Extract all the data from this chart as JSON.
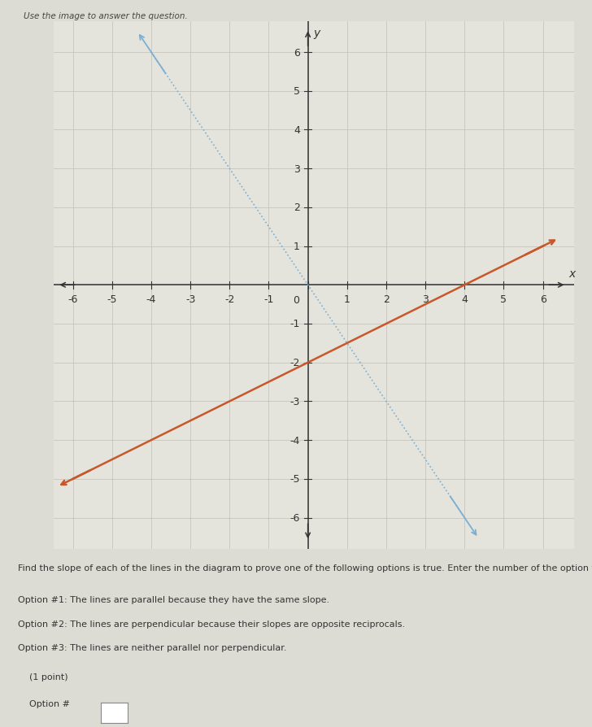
{
  "title": "Use the image to answer the question.",
  "xlabel": "x",
  "ylabel": "y",
  "xlim": [
    -6.5,
    6.8
  ],
  "ylim": [
    -6.8,
    6.8
  ],
  "xticks": [
    -6,
    -5,
    -4,
    -3,
    -2,
    -1,
    0,
    1,
    2,
    3,
    4,
    5,
    6
  ],
  "yticks": [
    -6,
    -5,
    -4,
    -3,
    -2,
    -1,
    1,
    2,
    3,
    4,
    5,
    6
  ],
  "blue_line": {
    "x1": -4,
    "y1": 6,
    "x2": 4,
    "y2": -6,
    "color": "#7BAFD4",
    "linewidth": 1.2,
    "linestyle": "dotted"
  },
  "orange_line": {
    "x1": -6,
    "y1": -5,
    "x2": 6,
    "y2": 1,
    "color": "#C8572A",
    "linewidth": 1.8,
    "linestyle": "solid"
  },
  "background_color": "#DCDCD4",
  "plot_bg_color": "#E4E4DC",
  "grid_color": "#C0C0B8",
  "axis_color": "#333333",
  "tick_label_color": "#333333",
  "tick_fontsize": 9,
  "question_text": "Find the slope of each of the lines in the diagram to prove one of the following options is true. Enter the number of the option that is",
  "option1": "Option #1: The lines are parallel because they have the same slope.",
  "option2": "Option #2: The lines are perpendicular because their slopes are opposite reciprocals.",
  "option3": "Option #3: The lines are neither parallel nor perpendicular.",
  "point_label": "(1 point)",
  "answer_label": "Option #",
  "text_fontsize": 8.0,
  "title_fontsize": 7.5
}
